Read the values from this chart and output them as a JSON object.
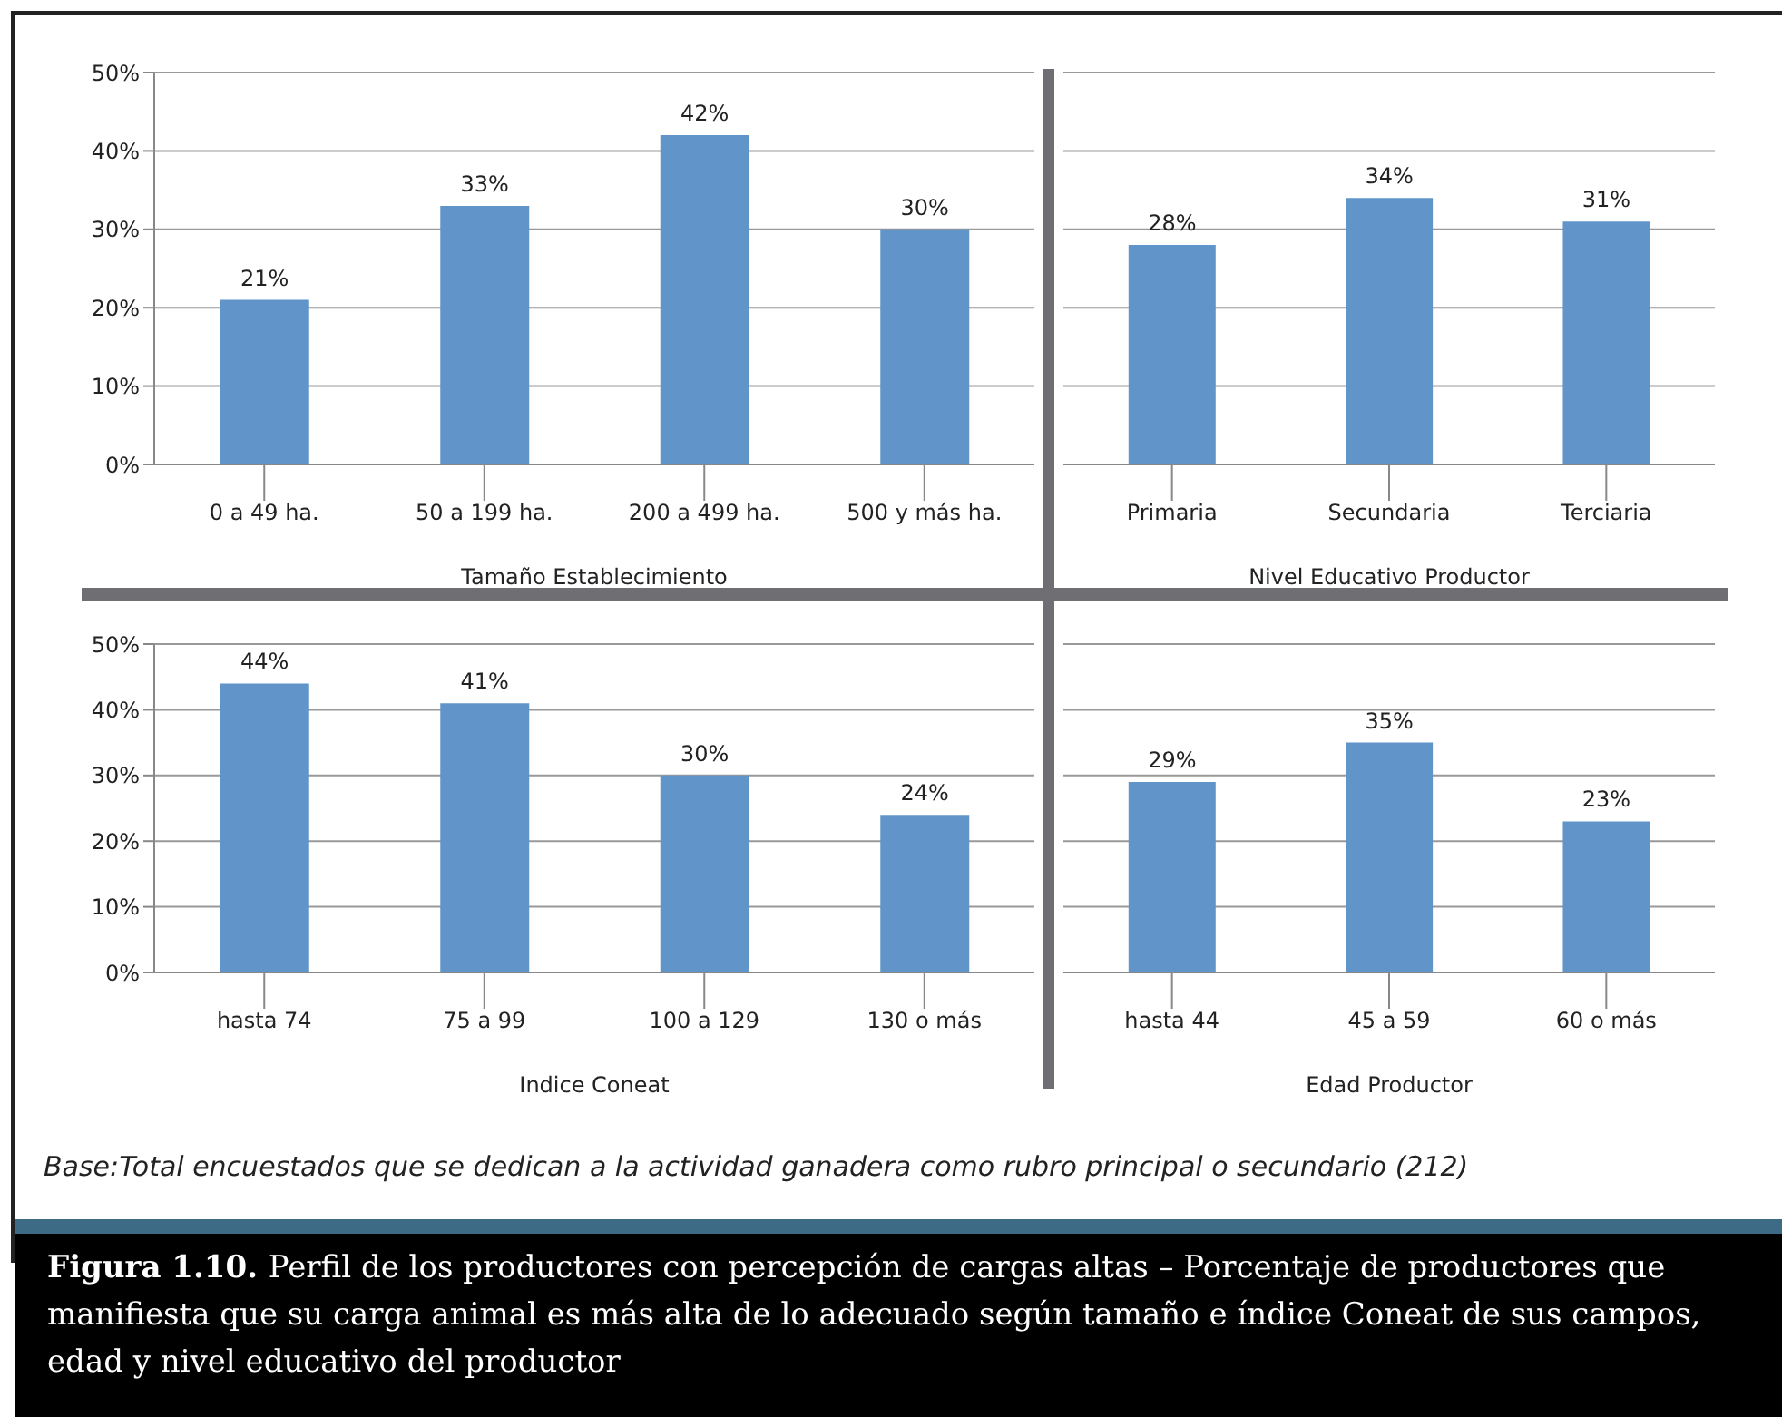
{
  "chart_data": [
    {
      "type": "bar",
      "categories": [
        "0 a 49 ha.",
        "50 a 199 ha.",
        "200 a 499 ha.",
        "500 y más ha."
      ],
      "xlabel": "Tamaño Establecimiento",
      "values": [
        21,
        33,
        42,
        30
      ],
      "value_labels": [
        "21%",
        "33%",
        "42%",
        "30%"
      ],
      "color": "#6194c9",
      "ylim": [
        0,
        50
      ],
      "yticks": [
        {
          "value": 0,
          "label": "0%"
        },
        {
          "value": 10,
          "label": "10%"
        },
        {
          "value": 20,
          "label": "20%"
        },
        {
          "value": 30,
          "label": "30%"
        },
        {
          "value": 40,
          "label": "40%"
        },
        {
          "value": 50,
          "label": "50%"
        }
      ],
      "grid": "y"
    },
    {
      "type": "bar",
      "categories": [
        "Primaria",
        "Secundaria",
        "Terciaria"
      ],
      "xlabel": "Nivel Educativo Productor",
      "values": [
        28,
        34,
        31
      ],
      "value_labels": [
        "28%",
        "34%",
        "31%"
      ],
      "color": "#6194c9",
      "ylim": [
        0,
        50
      ],
      "yticks": [
        {
          "value": 0,
          "label": null
        },
        {
          "value": 10,
          "label": null
        },
        {
          "value": 20,
          "label": null
        },
        {
          "value": 30,
          "label": null
        },
        {
          "value": 40,
          "label": null
        },
        {
          "value": 50,
          "label": null
        }
      ],
      "grid": "y",
      "tick_labels": "x"
    },
    {
      "type": "bar",
      "categories": [
        "hasta 74",
        "75 a 99",
        "100 a 129",
        "130 o más"
      ],
      "xlabel": "Indice Coneat",
      "values": [
        44,
        41,
        30,
        24
      ],
      "value_labels": [
        "44%",
        "41%",
        "30%",
        "24%"
      ],
      "color": "#6194c9",
      "ylim": [
        0,
        50
      ],
      "yticks": [
        {
          "value": 0,
          "label": "0%"
        },
        {
          "value": 10,
          "label": "10%"
        },
        {
          "value": 20,
          "label": "20%"
        },
        {
          "value": 30,
          "label": "30%"
        },
        {
          "value": 40,
          "label": "40%"
        },
        {
          "value": 50,
          "label": "50%"
        }
      ],
      "grid": "y"
    },
    {
      "type": "bar",
      "categories": [
        "hasta 44",
        "45 a 59",
        "60 o más"
      ],
      "xlabel": "Edad  Productor",
      "values": [
        29,
        35,
        23
      ],
      "value_labels": [
        "29%",
        "35%",
        "23%"
      ],
      "color": "#6194c9",
      "ylim": [
        0,
        50
      ],
      "yticks": [
        {
          "value": 0,
          "label": null
        },
        {
          "value": 10,
          "label": null
        },
        {
          "value": 20,
          "label": null
        },
        {
          "value": 30,
          "label": null
        },
        {
          "value": 40,
          "label": null
        },
        {
          "value": 50,
          "label": null
        }
      ],
      "grid": "y",
      "tick_labels": "x",
      "annotations": [
        "Base:Total encuestados que se dedican a la actividad ganadera como rubro principal o secundario (212)",
        "Figura 1.10.",
        "Perfil de los productores con percepción de cargas altas – Porcentaje de productores que manifiesta que su carga animal es más alta de lo adecuado según tamaño e índice Coneat de sus campos, edad y nivel educativo del productor"
      ]
    }
  ]
}
